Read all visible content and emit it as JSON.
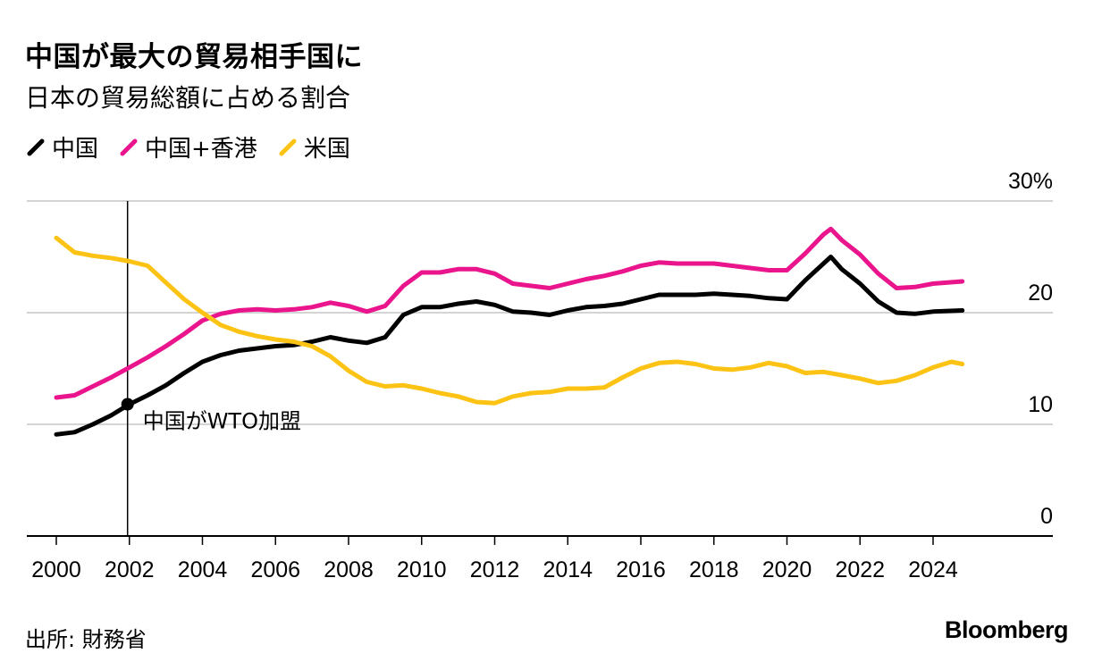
{
  "title": "中国が最大の貿易相手国に",
  "subtitle": "日本の貿易総額に占める割合",
  "source": "出所: 財務省",
  "brand": "Bloomberg",
  "chart_data": {
    "type": "line",
    "title": "中国が最大の貿易相手国に",
    "subtitle": "日本の貿易総額に占める割合",
    "xlabel": "",
    "ylabel": "",
    "xlim": [
      2000,
      2026
    ],
    "ylim": [
      0,
      30
    ],
    "y_ticks": [
      {
        "value": 0,
        "label": "0"
      },
      {
        "value": 10,
        "label": "10"
      },
      {
        "value": 20,
        "label": "20"
      },
      {
        "value": 30,
        "label": "30%"
      }
    ],
    "x_ticks": [
      2000,
      2002,
      2004,
      2006,
      2008,
      2010,
      2012,
      2014,
      2016,
      2018,
      2020,
      2022,
      2024
    ],
    "grid": true,
    "legend_position": "top-left",
    "annotation": {
      "x": 2001.95,
      "y": 11.8,
      "label": "中国がWTO加盟"
    },
    "series": [
      {
        "name": "中国",
        "color": "#000000",
        "x": [
          2000,
          2000.5,
          2001,
          2001.5,
          2002,
          2002.5,
          2003,
          2003.5,
          2004,
          2004.5,
          2005,
          2005.5,
          2006,
          2006.5,
          2007,
          2007.5,
          2008,
          2008.5,
          2009,
          2009.5,
          2010,
          2010.5,
          2011,
          2011.5,
          2012,
          2012.5,
          2013,
          2013.5,
          2014,
          2014.5,
          2015,
          2015.5,
          2016,
          2016.5,
          2017,
          2017.5,
          2018,
          2018.5,
          2019,
          2019.5,
          2020,
          2020.5,
          2021,
          2021.2,
          2021.5,
          2022,
          2022.5,
          2023,
          2023.5,
          2024,
          2024.8
        ],
        "values": [
          9.1,
          9.3,
          10.0,
          10.8,
          11.8,
          12.6,
          13.5,
          14.6,
          15.6,
          16.2,
          16.6,
          16.8,
          17.0,
          17.1,
          17.4,
          17.8,
          17.5,
          17.3,
          17.8,
          19.8,
          20.5,
          20.5,
          20.8,
          21.0,
          20.7,
          20.1,
          20.0,
          19.8,
          20.2,
          20.5,
          20.6,
          20.8,
          21.2,
          21.6,
          21.6,
          21.6,
          21.7,
          21.6,
          21.5,
          21.3,
          21.2,
          22.9,
          24.4,
          25.0,
          23.9,
          22.6,
          21.0,
          20.0,
          19.9,
          20.1,
          20.2
        ]
      },
      {
        "name": "中国+香港",
        "color": "#ea148c",
        "x": [
          2000,
          2000.5,
          2001,
          2001.5,
          2002,
          2002.5,
          2003,
          2003.5,
          2004,
          2004.5,
          2005,
          2005.5,
          2006,
          2006.5,
          2007,
          2007.5,
          2008,
          2008.5,
          2009,
          2009.5,
          2010,
          2010.5,
          2011,
          2011.5,
          2012,
          2012.5,
          2013,
          2013.5,
          2014,
          2014.5,
          2015,
          2015.5,
          2016,
          2016.5,
          2017,
          2017.5,
          2018,
          2018.5,
          2019,
          2019.5,
          2020,
          2020.5,
          2021,
          2021.2,
          2021.5,
          2022,
          2022.5,
          2023,
          2023.5,
          2024,
          2024.8
        ],
        "values": [
          12.4,
          12.6,
          13.4,
          14.2,
          15.1,
          16.0,
          17.0,
          18.1,
          19.3,
          19.9,
          20.2,
          20.3,
          20.2,
          20.3,
          20.5,
          20.9,
          20.6,
          20.1,
          20.6,
          22.4,
          23.6,
          23.6,
          23.9,
          23.9,
          23.5,
          22.6,
          22.4,
          22.2,
          22.6,
          23.0,
          23.3,
          23.7,
          24.2,
          24.5,
          24.4,
          24.4,
          24.4,
          24.2,
          24.0,
          23.8,
          23.8,
          25.3,
          27.0,
          27.5,
          26.5,
          25.2,
          23.5,
          22.2,
          22.3,
          22.6,
          22.8
        ]
      },
      {
        "name": "米国",
        "color": "#fcc314",
        "x": [
          2000,
          2000.5,
          2001,
          2001.5,
          2002,
          2002.5,
          2003,
          2003.5,
          2004,
          2004.5,
          2005,
          2005.5,
          2006,
          2006.5,
          2007,
          2007.5,
          2008,
          2008.5,
          2009,
          2009.5,
          2010,
          2010.5,
          2011,
          2011.5,
          2012,
          2012.5,
          2013,
          2013.5,
          2014,
          2014.5,
          2015,
          2015.5,
          2016,
          2016.5,
          2017,
          2017.5,
          2018,
          2018.5,
          2019,
          2019.5,
          2020,
          2020.5,
          2021,
          2021.5,
          2022,
          2022.5,
          2023,
          2023.5,
          2024,
          2024.5,
          2024.8
        ],
        "values": [
          26.7,
          25.4,
          25.1,
          24.9,
          24.6,
          24.2,
          22.7,
          21.2,
          20.0,
          18.9,
          18.3,
          17.9,
          17.6,
          17.4,
          17.0,
          16.1,
          14.8,
          13.8,
          13.4,
          13.5,
          13.2,
          12.8,
          12.5,
          12.0,
          11.9,
          12.5,
          12.8,
          12.9,
          13.2,
          13.2,
          13.3,
          14.2,
          15.0,
          15.5,
          15.6,
          15.4,
          15.0,
          14.9,
          15.1,
          15.5,
          15.2,
          14.6,
          14.7,
          14.4,
          14.1,
          13.7,
          13.9,
          14.4,
          15.1,
          15.6,
          15.4
        ]
      }
    ]
  }
}
